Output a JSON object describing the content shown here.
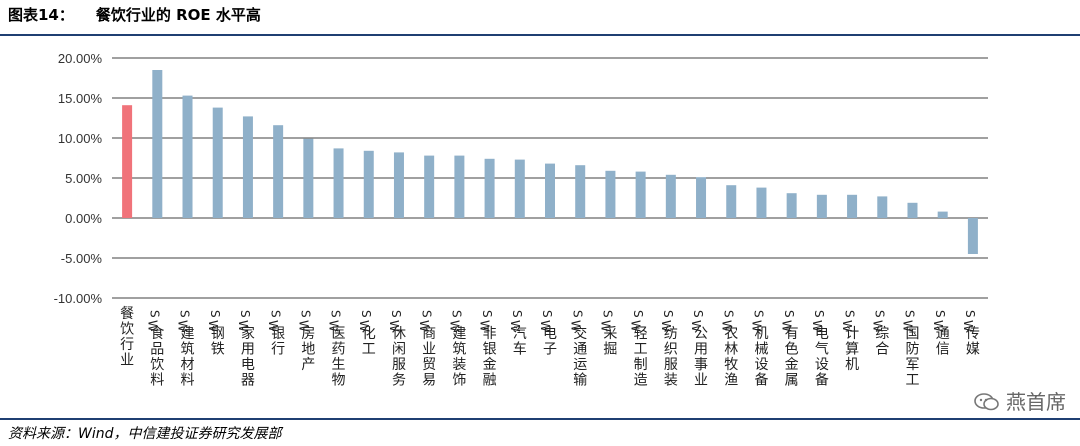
{
  "figure": {
    "number_label": "图表14：",
    "title": "餐饮行业的 ROE 水平高",
    "source": "资料来源：Wind，中信建投证券研究发展部",
    "watermark": "燕首席"
  },
  "colors": {
    "highlight_bar": "#f0737a",
    "bar": "#8fb0c9",
    "rule": "#1f3f72",
    "grid": "#404040"
  },
  "chart_data": {
    "type": "bar",
    "title": "",
    "xlabel": "",
    "ylabel": "",
    "ylim": [
      -10,
      20
    ],
    "yticks": [
      20,
      15,
      10,
      5,
      0,
      -5,
      -10
    ],
    "ytick_labels": [
      "20.00%",
      "15.00%",
      "10.00%",
      "5.00%",
      "0.00%",
      "-5.00%",
      "-10.00%"
    ],
    "grid": true,
    "categories": [
      "餐饮行业",
      "SW食品饮料",
      "SW建筑材料",
      "SW钢铁",
      "SW家用电器",
      "SW银行",
      "SW房地产",
      "SW医药生物",
      "SW化工",
      "SW休闲服务",
      "SW商业贸易",
      "SW建筑装饰",
      "SW非银金融",
      "SW汽车",
      "SW电子",
      "SW交通运输",
      "SW采掘",
      "SW轻工制造",
      "SW纺织服装",
      "SW公用事业",
      "SW农林牧渔",
      "SW机械设备",
      "SW有色金属",
      "SW电气设备",
      "SW计算机",
      "SW综合",
      "SW国防军工",
      "SW通信",
      "SW传媒"
    ],
    "values": [
      14.1,
      18.5,
      15.3,
      13.8,
      12.7,
      11.6,
      9.9,
      8.7,
      8.4,
      8.2,
      7.8,
      7.8,
      7.4,
      7.3,
      6.8,
      6.6,
      5.9,
      5.8,
      5.4,
      5.1,
      4.1,
      3.8,
      3.1,
      2.9,
      2.9,
      2.7,
      1.9,
      0.8,
      -4.5
    ],
    "highlight_index": 0
  }
}
